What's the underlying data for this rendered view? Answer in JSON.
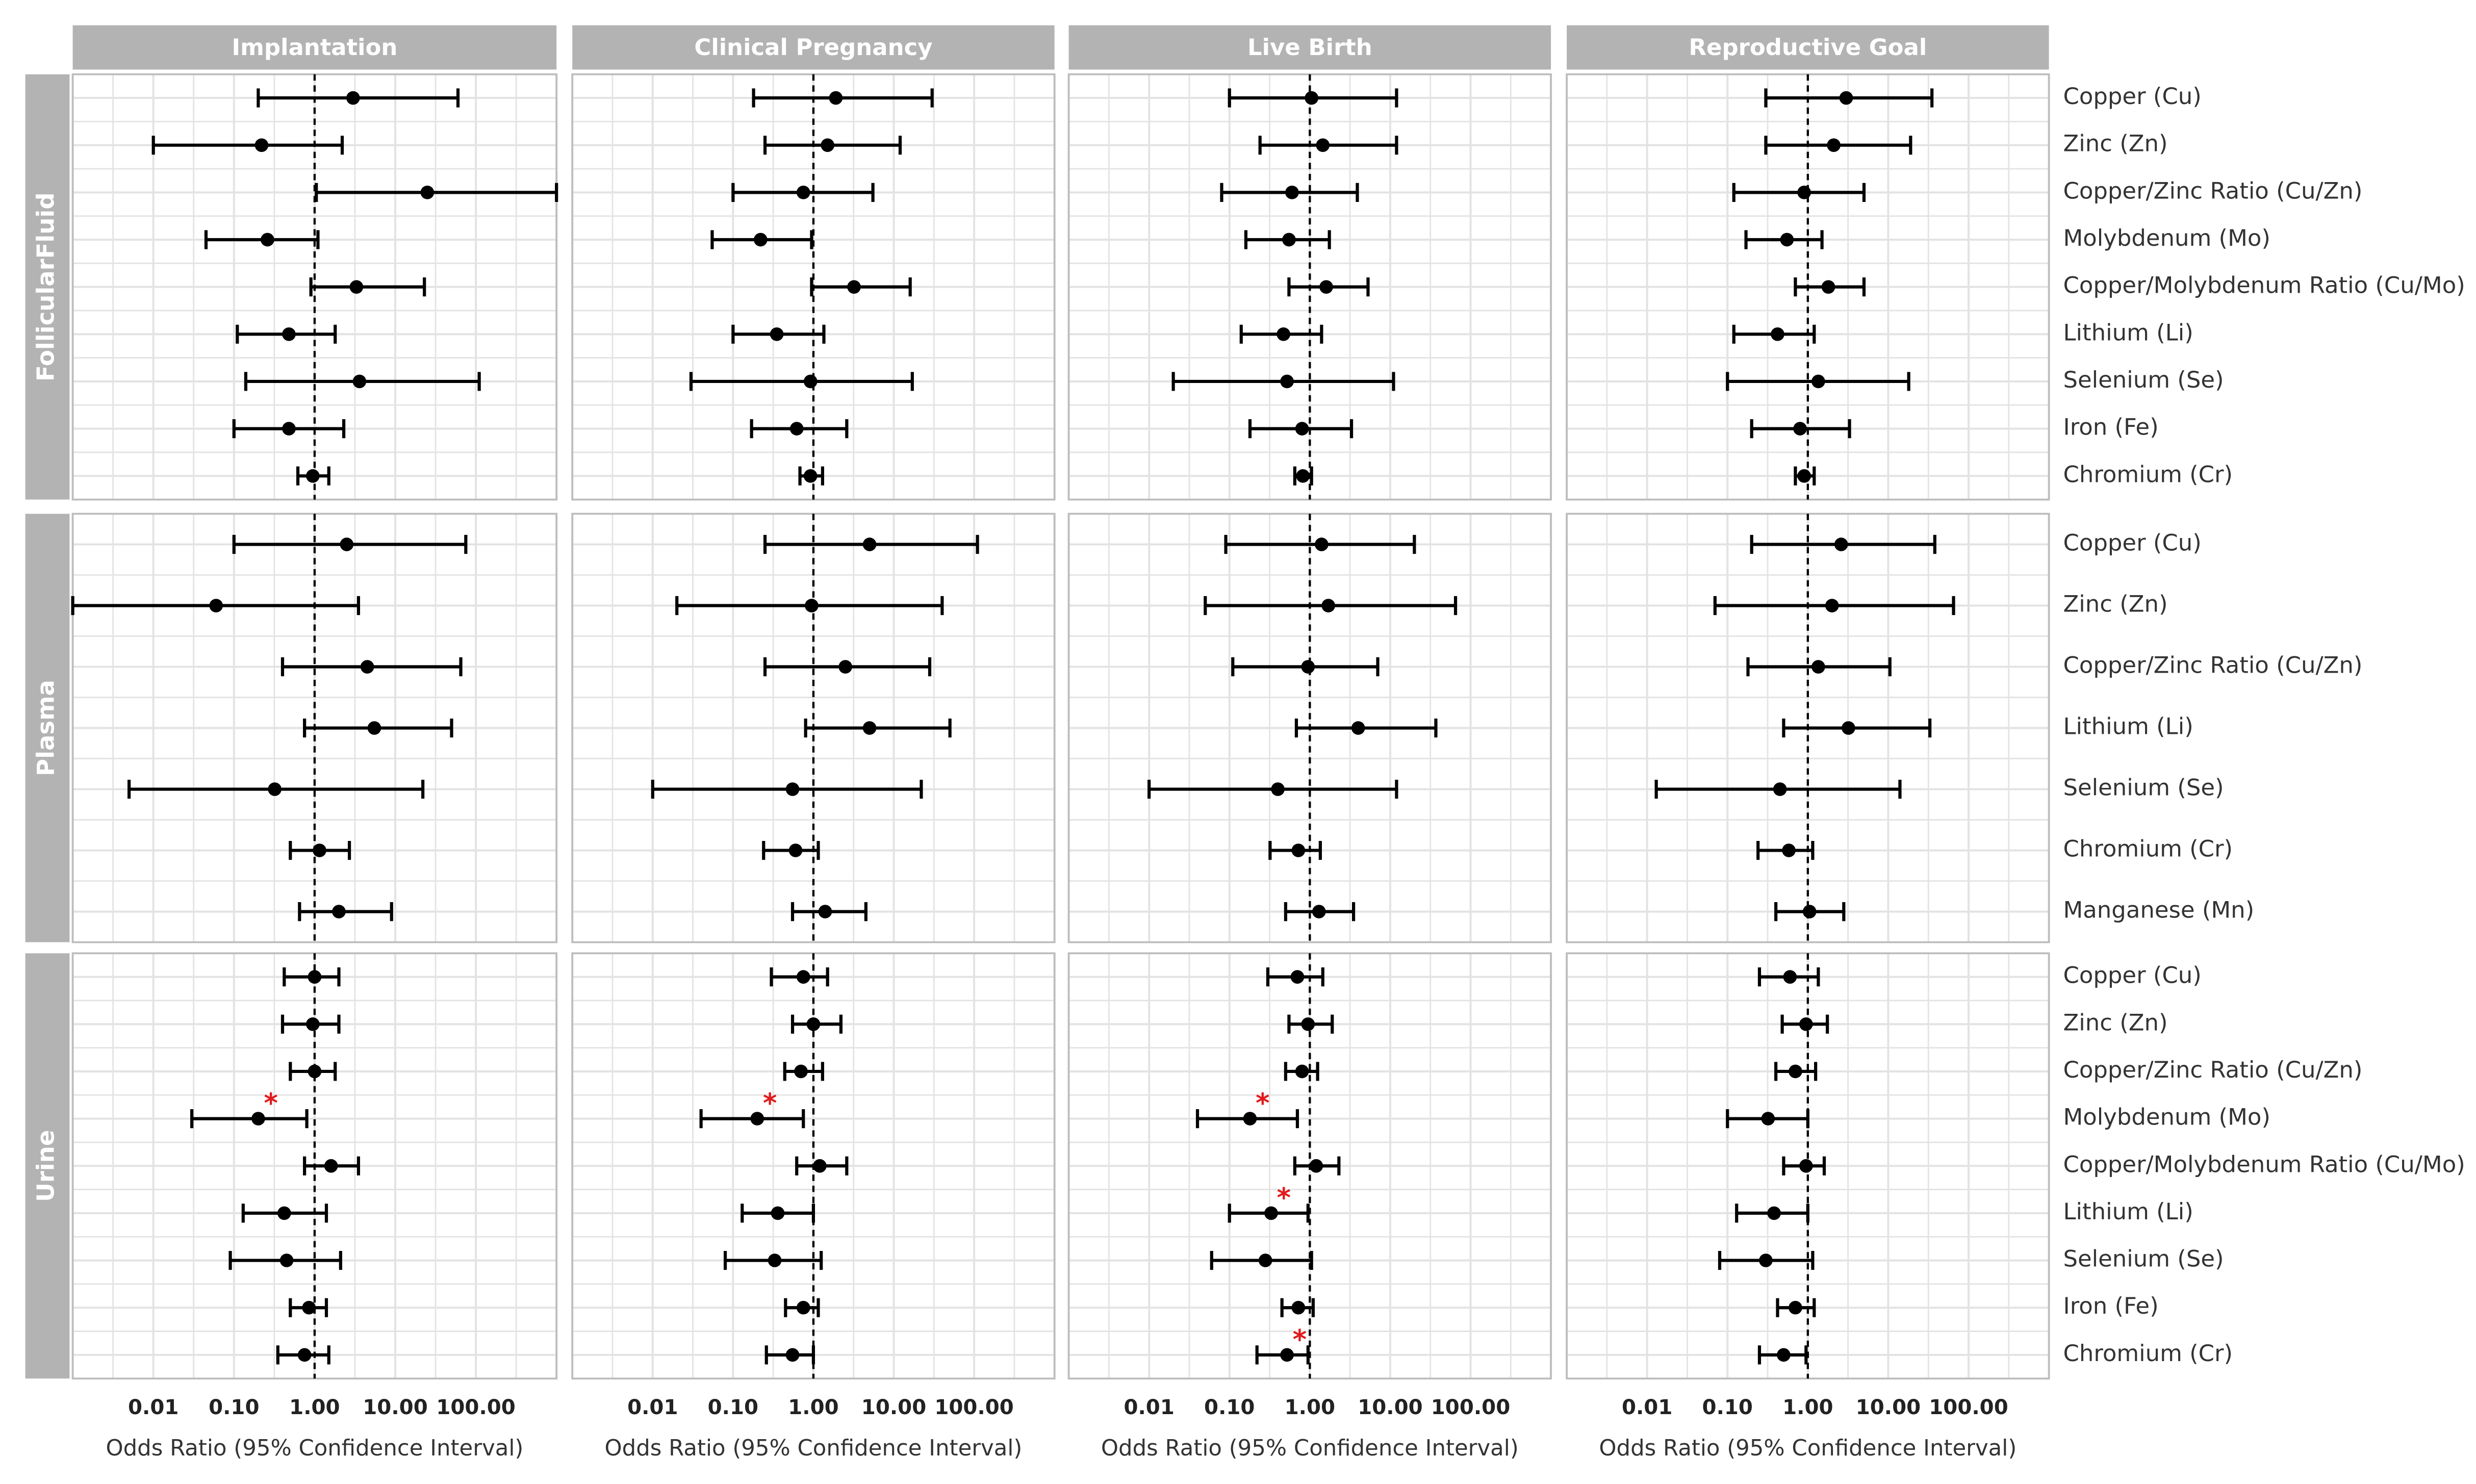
{
  "chart_data": {
    "type": "scatter",
    "subtype": "forest-plot",
    "x_scale": "log10",
    "xlim": [
      0.001,
      1000
    ],
    "reference_line": 1,
    "x_ticks": [
      {
        "value": 0.01,
        "label": "0.01"
      },
      {
        "value": 0.1,
        "label": "0.10"
      },
      {
        "value": 1,
        "label": "1.00"
      },
      {
        "value": 10,
        "label": "10.00"
      },
      {
        "value": 100,
        "label": "100.00"
      }
    ],
    "xlabel": "Odds Ratio (95% Confidence Interval)",
    "columns": [
      "Implantation",
      "Clinical Pregnancy",
      "Live Birth",
      "Reproductive Goal"
    ],
    "colors": {
      "point": "#000000",
      "significant": "#e31a1c",
      "strip": "#b3b3b3",
      "grid": "#e3e3e3",
      "panel_border": "#bdbdbd"
    },
    "significance_marker": "*",
    "rows": [
      {
        "name": "FollicularFluid",
        "labels": [
          "Copper (Cu)",
          "Zinc (Zn)",
          "Copper/Zinc Ratio (Cu/Zn)",
          "Molybdenum (Mo)",
          "Copper/Molybdenum Ratio (Cu/Mo)",
          "Lithium (Li)",
          "Selenium (Se)",
          "Iron (Fe)",
          "Chromium (Cr)"
        ],
        "panels": [
          {
            "est": [
              3.0,
              0.22,
              25.0,
              0.26,
              3.3,
              0.48,
              3.6,
              0.48,
              0.95
            ],
            "lo": [
              0.2,
              0.01,
              1.05,
              0.045,
              0.9,
              0.11,
              0.14,
              0.1,
              0.62
            ],
            "hi": [
              60.0,
              2.2,
              1000.0,
              1.1,
              23.0,
              1.8,
              110.0,
              2.3,
              1.5
            ],
            "sig": [
              false,
              false,
              false,
              false,
              false,
              false,
              false,
              false,
              false
            ]
          },
          {
            "est": [
              1.9,
              1.5,
              0.75,
              0.22,
              3.2,
              0.35,
              0.92,
              0.62,
              0.92
            ],
            "lo": [
              0.18,
              0.25,
              0.1,
              0.055,
              0.95,
              0.1,
              0.03,
              0.17,
              0.68
            ],
            "hi": [
              30.0,
              12.0,
              5.5,
              0.95,
              16.0,
              1.35,
              17.0,
              2.6,
              1.3
            ],
            "sig": [
              false,
              false,
              false,
              false,
              false,
              false,
              false,
              false,
              false
            ]
          },
          {
            "est": [
              1.05,
              1.45,
              0.6,
              0.55,
              1.6,
              0.47,
              0.52,
              0.8,
              0.82
            ],
            "lo": [
              0.1,
              0.24,
              0.08,
              0.16,
              0.55,
              0.14,
              0.02,
              0.18,
              0.65
            ],
            "hi": [
              12.0,
              12.0,
              3.9,
              1.75,
              5.3,
              1.4,
              11.0,
              3.3,
              1.05
            ],
            "sig": [
              false,
              false,
              false,
              false,
              false,
              false,
              false,
              false,
              false
            ]
          },
          {
            "est": [
              3.0,
              2.1,
              0.9,
              0.55,
              1.8,
              0.42,
              1.35,
              0.8,
              0.9
            ],
            "lo": [
              0.3,
              0.3,
              0.12,
              0.17,
              0.7,
              0.12,
              0.1,
              0.2,
              0.7
            ],
            "hi": [
              35.0,
              19.0,
              5.0,
              1.5,
              5.0,
              1.2,
              18.0,
              3.3,
              1.2
            ],
            "sig": [
              false,
              false,
              false,
              false,
              false,
              false,
              false,
              false,
              false
            ]
          }
        ]
      },
      {
        "name": "Plasma",
        "labels": [
          "Copper (Cu)",
          "Zinc (Zn)",
          "Copper/Zinc Ratio (Cu/Zn)",
          "Lithium (Li)",
          "Selenium (Se)",
          "Chromium (Cr)",
          "Manganese (Mn)"
        ],
        "panels": [
          {
            "est": [
              2.5,
              0.06,
              4.5,
              5.5,
              0.32,
              1.15,
              2.0
            ],
            "lo": [
              0.1,
              0.001,
              0.4,
              0.75,
              0.005,
              0.5,
              0.65
            ],
            "hi": [
              75.0,
              3.5,
              65.0,
              50.0,
              22.0,
              2.7,
              9.0
            ],
            "sig": [
              false,
              false,
              false,
              false,
              false,
              false,
              false
            ]
          },
          {
            "est": [
              5.0,
              0.95,
              2.5,
              5.0,
              0.55,
              0.6,
              1.4
            ],
            "lo": [
              0.25,
              0.02,
              0.25,
              0.8,
              0.01,
              0.24,
              0.55
            ],
            "hi": [
              110.0,
              40.0,
              28.0,
              50.0,
              22.0,
              1.15,
              4.5
            ],
            "sig": [
              false,
              false,
              false,
              false,
              false,
              false,
              false
            ]
          },
          {
            "est": [
              1.4,
              1.7,
              0.95,
              4.0,
              0.4,
              0.72,
              1.3
            ],
            "lo": [
              0.09,
              0.05,
              0.11,
              0.68,
              0.01,
              0.32,
              0.5
            ],
            "hi": [
              20.0,
              65.0,
              7.0,
              37.0,
              12.0,
              1.35,
              3.5
            ],
            "sig": [
              false,
              false,
              false,
              false,
              false,
              false,
              false
            ]
          },
          {
            "est": [
              2.6,
              2.0,
              1.35,
              3.2,
              0.45,
              0.58,
              1.05
            ],
            "lo": [
              0.2,
              0.07,
              0.18,
              0.5,
              0.013,
              0.24,
              0.4
            ],
            "hi": [
              38.0,
              65.0,
              10.5,
              33.0,
              14.0,
              1.15,
              2.8
            ],
            "sig": [
              false,
              false,
              false,
              false,
              false,
              false,
              false
            ]
          }
        ]
      },
      {
        "name": "Urine",
        "labels": [
          "Copper (Cu)",
          "Zinc (Zn)",
          "Copper/Zinc Ratio (Cu/Zn)",
          "Molybdenum (Mo)",
          "Copper/Molybdenum Ratio (Cu/Mo)",
          "Lithium (Li)",
          "Selenium (Se)",
          "Iron (Fe)",
          "Chromium (Cr)"
        ],
        "panels": [
          {
            "est": [
              1.0,
              0.95,
              1.0,
              0.2,
              1.6,
              0.42,
              0.45,
              0.85,
              0.75
            ],
            "lo": [
              0.42,
              0.4,
              0.5,
              0.03,
              0.75,
              0.13,
              0.09,
              0.5,
              0.35
            ],
            "hi": [
              2.0,
              2.0,
              1.8,
              0.8,
              3.5,
              1.4,
              2.1,
              1.4,
              1.5
            ],
            "sig": [
              false,
              false,
              false,
              true,
              false,
              false,
              false,
              false,
              false
            ]
          },
          {
            "est": [
              0.75,
              1.0,
              0.7,
              0.2,
              1.2,
              0.36,
              0.33,
              0.75,
              0.55
            ],
            "lo": [
              0.3,
              0.55,
              0.44,
              0.04,
              0.62,
              0.13,
              0.08,
              0.45,
              0.26
            ],
            "hi": [
              1.5,
              2.2,
              1.3,
              0.75,
              2.6,
              1.0,
              1.25,
              1.15,
              1.0
            ],
            "sig": [
              false,
              false,
              false,
              true,
              false,
              false,
              false,
              false,
              false
            ]
          },
          {
            "est": [
              0.7,
              0.95,
              0.8,
              0.18,
              1.2,
              0.33,
              0.28,
              0.72,
              0.52
            ],
            "lo": [
              0.3,
              0.55,
              0.5,
              0.04,
              0.65,
              0.1,
              0.06,
              0.45,
              0.22
            ],
            "hi": [
              1.45,
              1.9,
              1.25,
              0.7,
              2.3,
              0.95,
              1.05,
              1.1,
              0.95
            ],
            "sig": [
              false,
              false,
              false,
              true,
              false,
              true,
              false,
              false,
              true
            ]
          },
          {
            "est": [
              0.6,
              0.95,
              0.7,
              0.32,
              0.95,
              0.38,
              0.3,
              0.7,
              0.5
            ],
            "lo": [
              0.25,
              0.48,
              0.4,
              0.1,
              0.5,
              0.13,
              0.08,
              0.42,
              0.25
            ],
            "hi": [
              1.35,
              1.75,
              1.25,
              1.0,
              1.6,
              1.0,
              1.15,
              1.2,
              0.95
            ],
            "sig": [
              false,
              false,
              false,
              false,
              false,
              false,
              false,
              false,
              false
            ]
          }
        ]
      }
    ]
  }
}
